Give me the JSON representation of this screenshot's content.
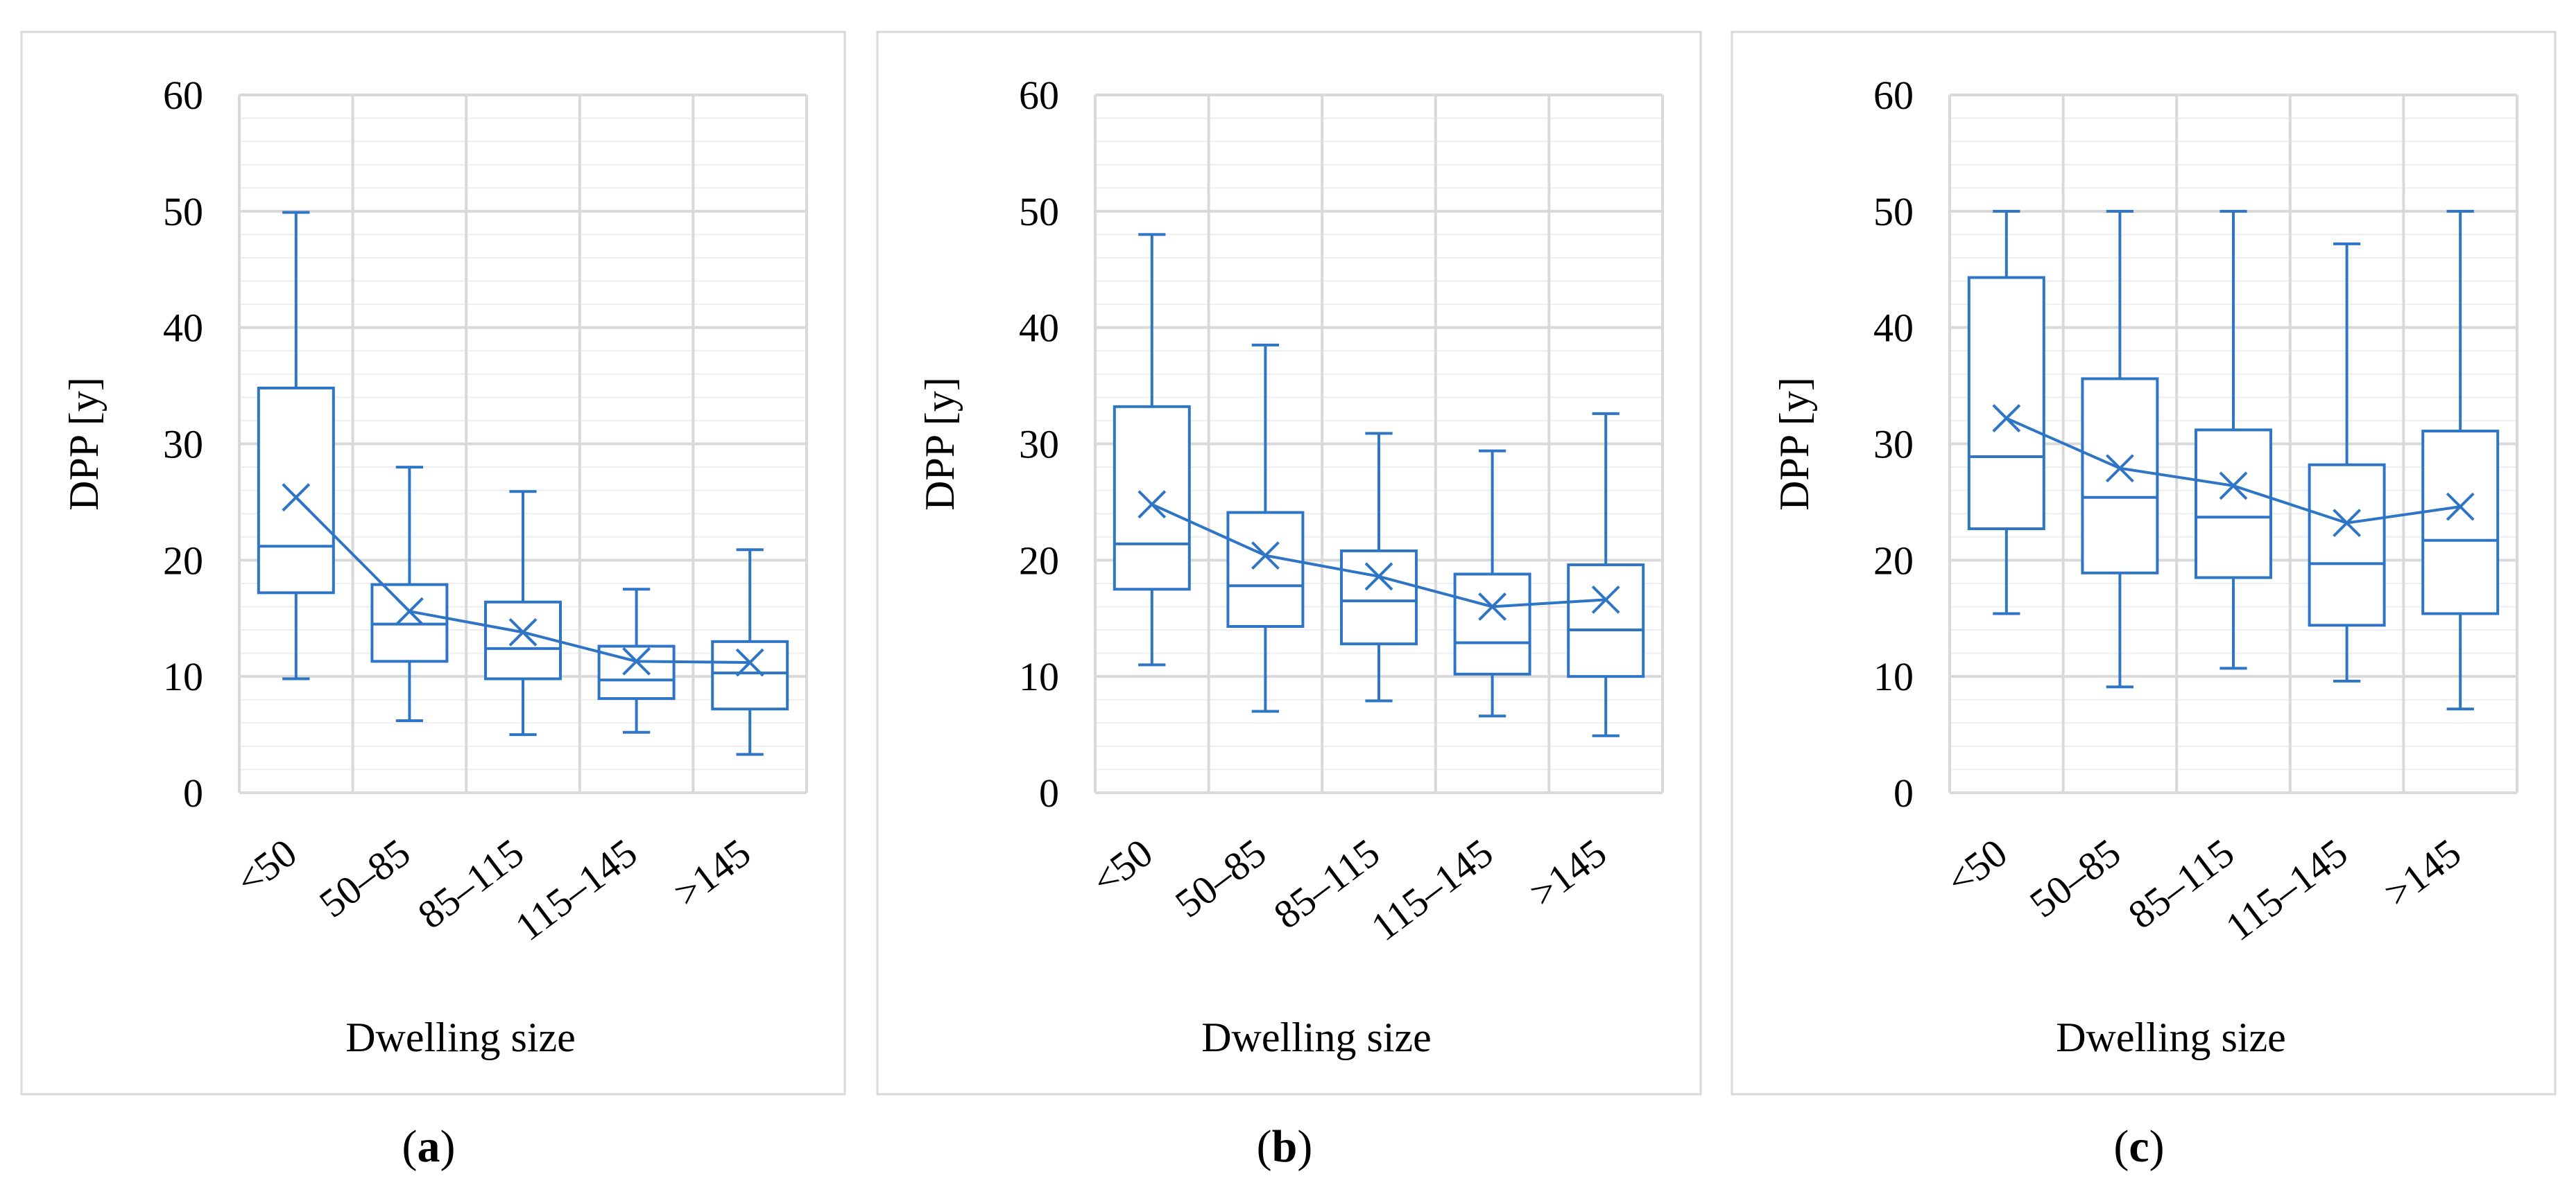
{
  "chart_data": [
    {
      "type": "box",
      "caption_open": "(",
      "caption_letter": "a",
      "caption_close": ")",
      "xlabel": "Dwelling size",
      "ylabel": "DPP [y]",
      "ylim": [
        0,
        60
      ],
      "yticks": [
        0,
        10,
        20,
        30,
        40,
        50,
        60
      ],
      "ytick_labels": [
        "0",
        "10",
        "20",
        "30",
        "40",
        "50",
        "60"
      ],
      "categories": [
        "<50",
        "50–85",
        "85–115",
        "115–145",
        ">145"
      ],
      "boxes": [
        {
          "min": 9.8,
          "q1": 17.2,
          "median": 21.2,
          "q3": 34.8,
          "max": 49.9,
          "mean": 25.4
        },
        {
          "min": 6.2,
          "q1": 11.3,
          "median": 14.5,
          "q3": 17.9,
          "max": 28.0,
          "mean": 15.6
        },
        {
          "min": 5.0,
          "q1": 9.8,
          "median": 12.4,
          "q3": 16.4,
          "max": 25.9,
          "mean": 13.8
        },
        {
          "min": 5.2,
          "q1": 8.1,
          "median": 9.7,
          "q3": 12.6,
          "max": 17.5,
          "mean": 11.3
        },
        {
          "min": 3.3,
          "q1": 7.2,
          "median": 10.3,
          "q3": 13.0,
          "max": 20.9,
          "mean": 11.2
        }
      ],
      "mean_values": [
        25.4,
        15.6,
        13.8,
        11.3,
        11.2
      ]
    },
    {
      "type": "box",
      "caption_open": "(",
      "caption_letter": "b",
      "caption_close": ")",
      "xlabel": "Dwelling size",
      "ylabel": "DPP [y]",
      "ylim": [
        0,
        60
      ],
      "yticks": [
        0,
        10,
        20,
        30,
        40,
        50,
        60
      ],
      "ytick_labels": [
        "0",
        "10",
        "20",
        "30",
        "40",
        "50",
        "60"
      ],
      "categories": [
        "<50",
        "50–85",
        "85–115",
        "115–145",
        ">145"
      ],
      "boxes": [
        {
          "min": 11.0,
          "q1": 17.5,
          "median": 21.4,
          "q3": 33.2,
          "max": 48.0,
          "mean": 24.8
        },
        {
          "min": 7.0,
          "q1": 14.3,
          "median": 17.8,
          "q3": 24.1,
          "max": 38.5,
          "mean": 20.4
        },
        {
          "min": 7.9,
          "q1": 12.8,
          "median": 16.5,
          "q3": 20.8,
          "max": 30.9,
          "mean": 18.6
        },
        {
          "min": 6.6,
          "q1": 10.2,
          "median": 12.9,
          "q3": 18.8,
          "max": 29.4,
          "mean": 16.0
        },
        {
          "min": 4.9,
          "q1": 10.0,
          "median": 14.0,
          "q3": 19.6,
          "max": 32.6,
          "mean": 16.6
        }
      ],
      "mean_values": [
        24.8,
        20.4,
        18.6,
        16.0,
        16.6
      ]
    },
    {
      "type": "box",
      "caption_open": "(",
      "caption_letter": "c",
      "caption_close": ")",
      "xlabel": "Dwelling size",
      "ylabel": "DPP [y]",
      "ylim": [
        0,
        60
      ],
      "yticks": [
        0,
        10,
        20,
        30,
        40,
        50,
        60
      ],
      "ytick_labels": [
        "0",
        "10",
        "20",
        "30",
        "40",
        "50",
        "60"
      ],
      "categories": [
        "<50",
        "50–85",
        "85–115",
        "115–145",
        ">145"
      ],
      "boxes": [
        {
          "min": 15.4,
          "q1": 22.7,
          "median": 28.9,
          "q3": 44.3,
          "max": 50.0,
          "mean": 32.2
        },
        {
          "min": 9.1,
          "q1": 18.9,
          "median": 25.4,
          "q3": 35.6,
          "max": 50.0,
          "mean": 27.9
        },
        {
          "min": 10.7,
          "q1": 18.5,
          "median": 23.7,
          "q3": 31.2,
          "max": 50.0,
          "mean": 26.4
        },
        {
          "min": 9.6,
          "q1": 14.4,
          "median": 19.7,
          "q3": 28.2,
          "max": 47.2,
          "mean": 23.2
        },
        {
          "min": 7.2,
          "q1": 15.4,
          "median": 21.7,
          "q3": 31.1,
          "max": 50.0,
          "mean": 24.6
        }
      ],
      "mean_values": [
        32.2,
        27.9,
        26.4,
        23.2,
        24.6
      ]
    }
  ],
  "colors": {
    "series": "#2f75c5",
    "grid_major": "#d9d9d9",
    "grid_minor": "#eeeeee",
    "frame": "#d9d9d9",
    "text": "#000000"
  }
}
